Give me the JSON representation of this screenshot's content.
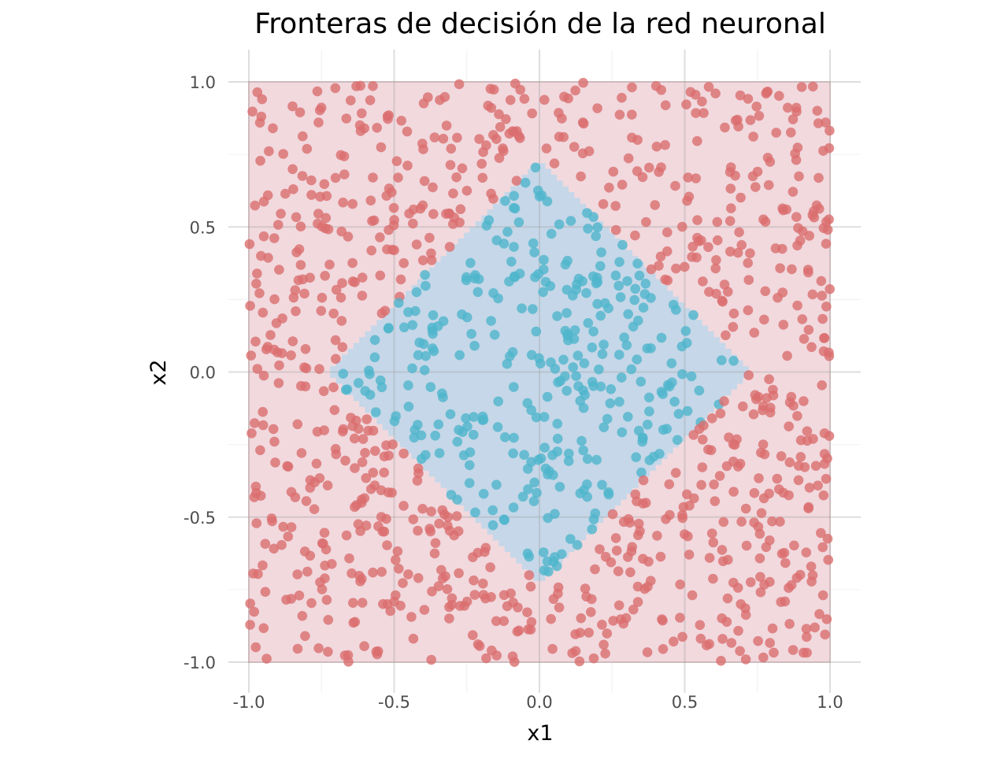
{
  "chart_data": {
    "type": "scatter",
    "title": "Fronteras de decisión de la red neuronal",
    "xlabel": "x1",
    "ylabel": "x2",
    "xlim": [
      -1.1,
      1.1
    ],
    "ylim": [
      -1.1,
      1.1
    ],
    "x_ticks": [
      -1.0,
      -0.5,
      0.0,
      0.5,
      1.0
    ],
    "y_ticks": [
      -1.0,
      -0.5,
      0.0,
      0.5,
      1.0
    ],
    "x_tick_labels": [
      "-1.0",
      "-0.5",
      "0.0",
      "0.5",
      "1.0"
    ],
    "y_tick_labels": [
      "-1.0",
      "-0.5",
      "0.0",
      "0.5",
      "1.0"
    ],
    "grid": true,
    "legend": "none",
    "background": {
      "domain": [
        -1.0,
        1.0
      ],
      "regions": [
        {
          "class": "outer",
          "region": "|x1| + |x2| > 0.73",
          "color": "#f1d9de"
        },
        {
          "class": "inner",
          "region": "|x1| + |x2| <= 0.73",
          "color": "#c5d7e8"
        }
      ]
    },
    "points": {
      "n_total": 1200,
      "distribution": "uniform in [-1, 1] x [-1, 1]",
      "rule": "|x1| + |x2| < 0.73 -> inner, otherwise outer",
      "colors": {
        "outer": "#db6e6e",
        "inner": "#4fb5cc"
      },
      "opacity": 0.8
    }
  }
}
